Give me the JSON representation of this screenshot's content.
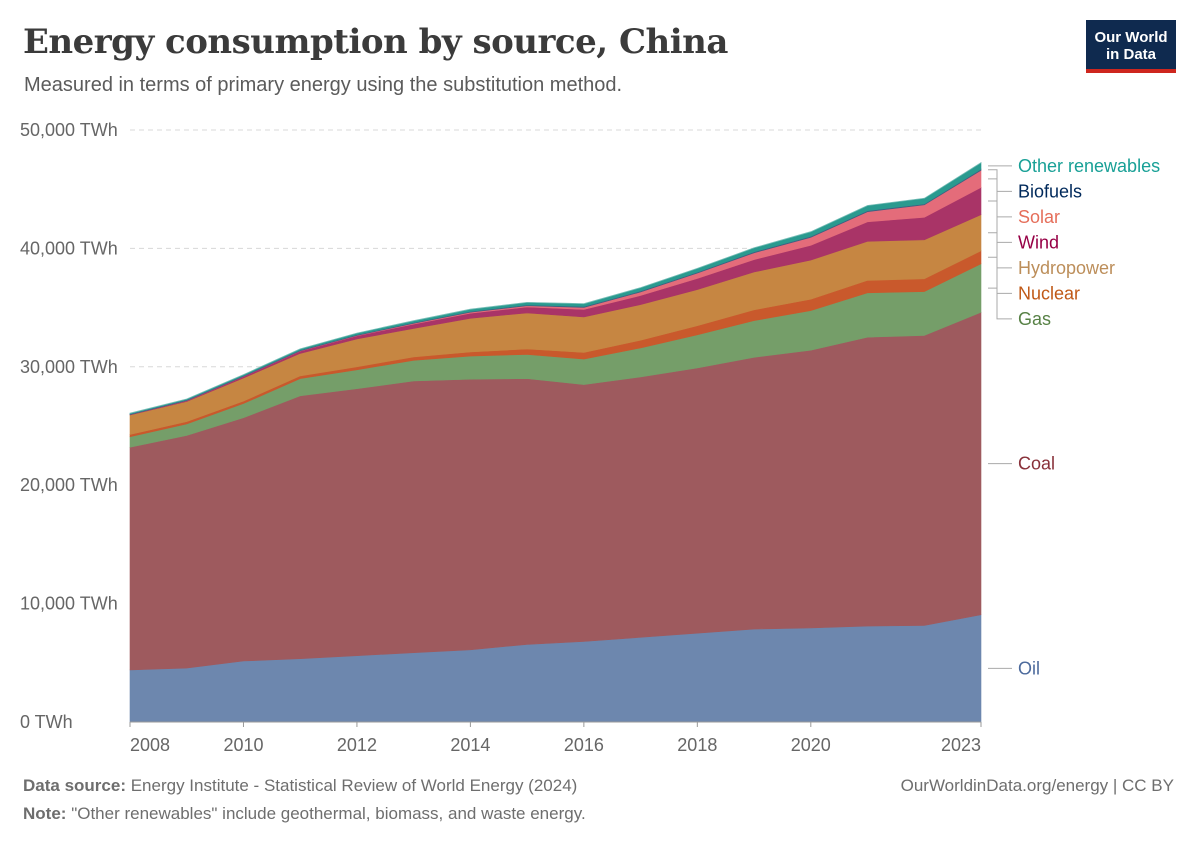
{
  "header": {
    "title": "Energy consumption by source, China",
    "subtitle": "Measured in terms of primary energy using the substitution method.",
    "logo_line1": "Our World",
    "logo_line2": "in Data"
  },
  "footer": {
    "source_label": "Data source:",
    "source_text": "Energy Institute - Statistical Review of World Energy (2024)",
    "note_label": "Note:",
    "note_text": "\"Other renewables\" include geothermal, biomass, and waste energy.",
    "credit": "OurWorldinData.org/energy | CC BY"
  },
  "chart_data": {
    "type": "area",
    "stacked": true,
    "title": "Energy consumption by source, China",
    "x": [
      2008,
      2009,
      2010,
      2011,
      2012,
      2013,
      2014,
      2015,
      2016,
      2017,
      2018,
      2019,
      2020,
      2021,
      2022,
      2023
    ],
    "x_ticks": [
      2008,
      2010,
      2012,
      2014,
      2016,
      2018,
      2020,
      2023
    ],
    "xlim": [
      2008,
      2023
    ],
    "ylim": [
      0,
      50000
    ],
    "y_ticks": [
      0,
      10000,
      20000,
      30000,
      40000,
      50000
    ],
    "y_tick_labels": [
      "0 TWh",
      "10,000 TWh",
      "20,000 TWh",
      "30,000 TWh",
      "40,000 TWh",
      "50,000 TWh"
    ],
    "grid": "horizontal dashed",
    "legend": "right, labels beside stacks",
    "series": [
      {
        "name": "Oil",
        "color": "#6d87ae",
        "label_color": "#4c6a9c",
        "values": [
          4400,
          4550,
          5150,
          5350,
          5600,
          5850,
          6100,
          6550,
          6800,
          7150,
          7500,
          7850,
          7950,
          8100,
          8150,
          9050
        ]
      },
      {
        "name": "Coal",
        "color": "#9e5a5e",
        "label_color": "#883039",
        "values": [
          18800,
          19650,
          20550,
          22200,
          22550,
          22950,
          22850,
          22450,
          21700,
          22000,
          22400,
          22950,
          23450,
          24400,
          24500,
          25550
        ]
      },
      {
        "name": "Gas",
        "color": "#759e69",
        "label_color": "#578145",
        "values": [
          900,
          980,
          1200,
          1450,
          1600,
          1750,
          1950,
          2050,
          2150,
          2450,
          2800,
          3100,
          3350,
          3750,
          3700,
          4100
        ]
      },
      {
        "name": "Nuclear",
        "color": "#c9592c",
        "label_color": "#c05917",
        "values": [
          180,
          190,
          200,
          230,
          250,
          290,
          350,
          450,
          560,
          650,
          770,
          910,
          960,
          1050,
          1080,
          1100
        ]
      },
      {
        "name": "Hydropower",
        "color": "#c68642",
        "label_color": "#bc8e5a",
        "values": [
          1650,
          1700,
          1950,
          1900,
          2350,
          2400,
          2850,
          3050,
          3000,
          3000,
          3050,
          3200,
          3300,
          3300,
          3300,
          3050
        ]
      },
      {
        "name": "Wind",
        "color": "#a93467",
        "label_color": "#970046",
        "values": [
          35,
          70,
          130,
          200,
          270,
          370,
          430,
          500,
          630,
          770,
          940,
          1040,
          1250,
          1650,
          1900,
          2300
        ]
      },
      {
        "name": "Solar",
        "color": "#e46c7a",
        "label_color": "#e56e5a",
        "values": [
          2,
          5,
          10,
          20,
          35,
          60,
          80,
          110,
          180,
          300,
          450,
          580,
          680,
          850,
          1050,
          1450
        ]
      },
      {
        "name": "Biofuels",
        "color": "#3f5f82",
        "label_color": "#00295b",
        "values": [
          50,
          60,
          60,
          60,
          60,
          60,
          70,
          70,
          70,
          80,
          80,
          80,
          80,
          80,
          80,
          90
        ]
      },
      {
        "name": "Other renewables",
        "color": "#2a9a8f",
        "label_color": "#18a096",
        "values": [
          70,
          80,
          100,
          110,
          140,
          170,
          190,
          220,
          250,
          300,
          330,
          350,
          400,
          450,
          480,
          560
        ]
      }
    ]
  }
}
